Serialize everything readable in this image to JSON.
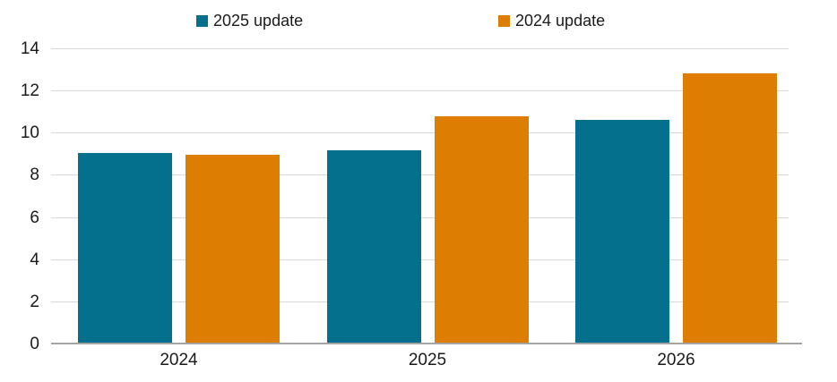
{
  "chart_data": {
    "type": "bar",
    "categories": [
      "2024",
      "2025",
      "2026"
    ],
    "series": [
      {
        "name": "2025 update",
        "color": "#04708E",
        "values": [
          9.1,
          9.2,
          10.65
        ]
      },
      {
        "name": "2024 update",
        "color": "#DD7D01",
        "values": [
          9.0,
          10.8,
          12.85
        ]
      }
    ],
    "ylim": [
      0,
      14
    ],
    "ytick_step": 2,
    "grid": true,
    "legend_position": "top-center"
  },
  "legend": {
    "items": [
      {
        "label": "2025 update",
        "color": "#04708E"
      },
      {
        "label": "2024 update",
        "color": "#DD7D01"
      }
    ]
  },
  "axes": {
    "y_ticks": [
      "0",
      "2",
      "4",
      "6",
      "8",
      "10",
      "12",
      "14"
    ],
    "x_ticks": [
      "2024",
      "2025",
      "2026"
    ]
  },
  "colors": {
    "teal": "#04708E",
    "orange": "#DD7D01",
    "gridline": "#D9D9D9",
    "axis_line": "#A3A3A3",
    "text": "#1A1A1A",
    "background": "#FFFFFF"
  }
}
